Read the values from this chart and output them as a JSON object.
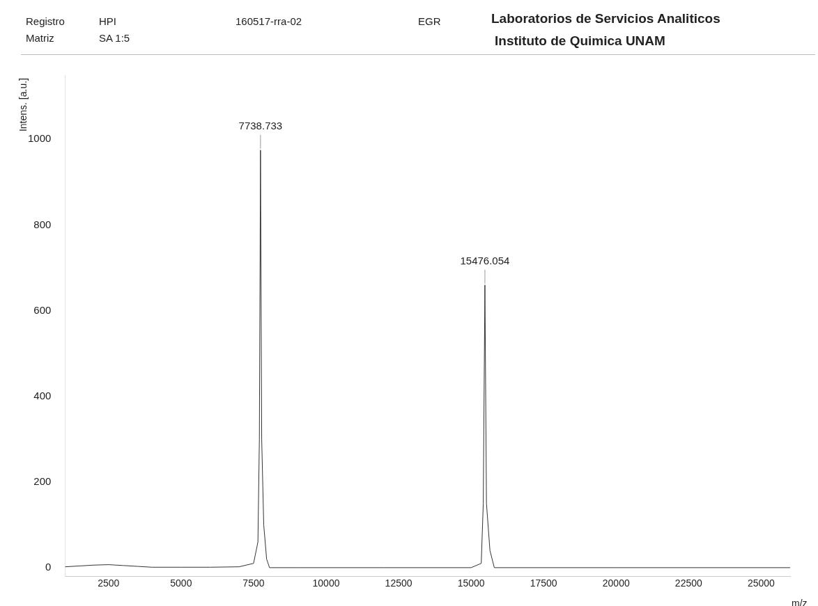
{
  "chart_data": {
    "type": "line",
    "title": "Laboratorios de Servicios Analiticos",
    "subtitle": "Instituto de Quimica UNAM",
    "xlabel": "m/z",
    "ylabel": "Intens. [a.u.]",
    "annotations": [
      "Registro",
      "HPI",
      "160517-rra-02",
      "EGR",
      "Matriz",
      "SA 1:5",
      {
        "text": "7738.733",
        "x": 7738.733,
        "y": 975
      },
      {
        "text": "15476.054",
        "x": 15476.054,
        "y": 660
      }
    ],
    "series": [
      {
        "color": "#333333",
        "x": [
          1000,
          1500,
          2000,
          2500,
          3000,
          3500,
          4000,
          5000,
          6000,
          7000,
          7500,
          7650,
          7700,
          7738.733,
          7780,
          7850,
          7950,
          8050,
          9000,
          12000,
          15000,
          15350,
          15420,
          15476.054,
          15530,
          15650,
          15800,
          20000,
          26000
        ],
        "values": [
          2,
          4,
          6,
          7,
          5,
          3,
          1,
          1,
          1,
          2,
          10,
          60,
          300,
          975,
          300,
          100,
          20,
          0,
          0,
          0,
          0,
          10,
          150,
          660,
          150,
          40,
          0,
          0,
          0
        ]
      }
    ],
    "xlim": [
      1000,
      26000
    ],
    "xticks": [
      2500,
      5000,
      7500,
      10000,
      12500,
      15000,
      17500,
      20000,
      22500,
      25000
    ],
    "ylim": [
      -20,
      1150
    ],
    "yticks": [
      0,
      200,
      400,
      600,
      800,
      1000
    ],
    "grid": false,
    "legend": false,
    "marker": "none",
    "line_style": "solid"
  }
}
